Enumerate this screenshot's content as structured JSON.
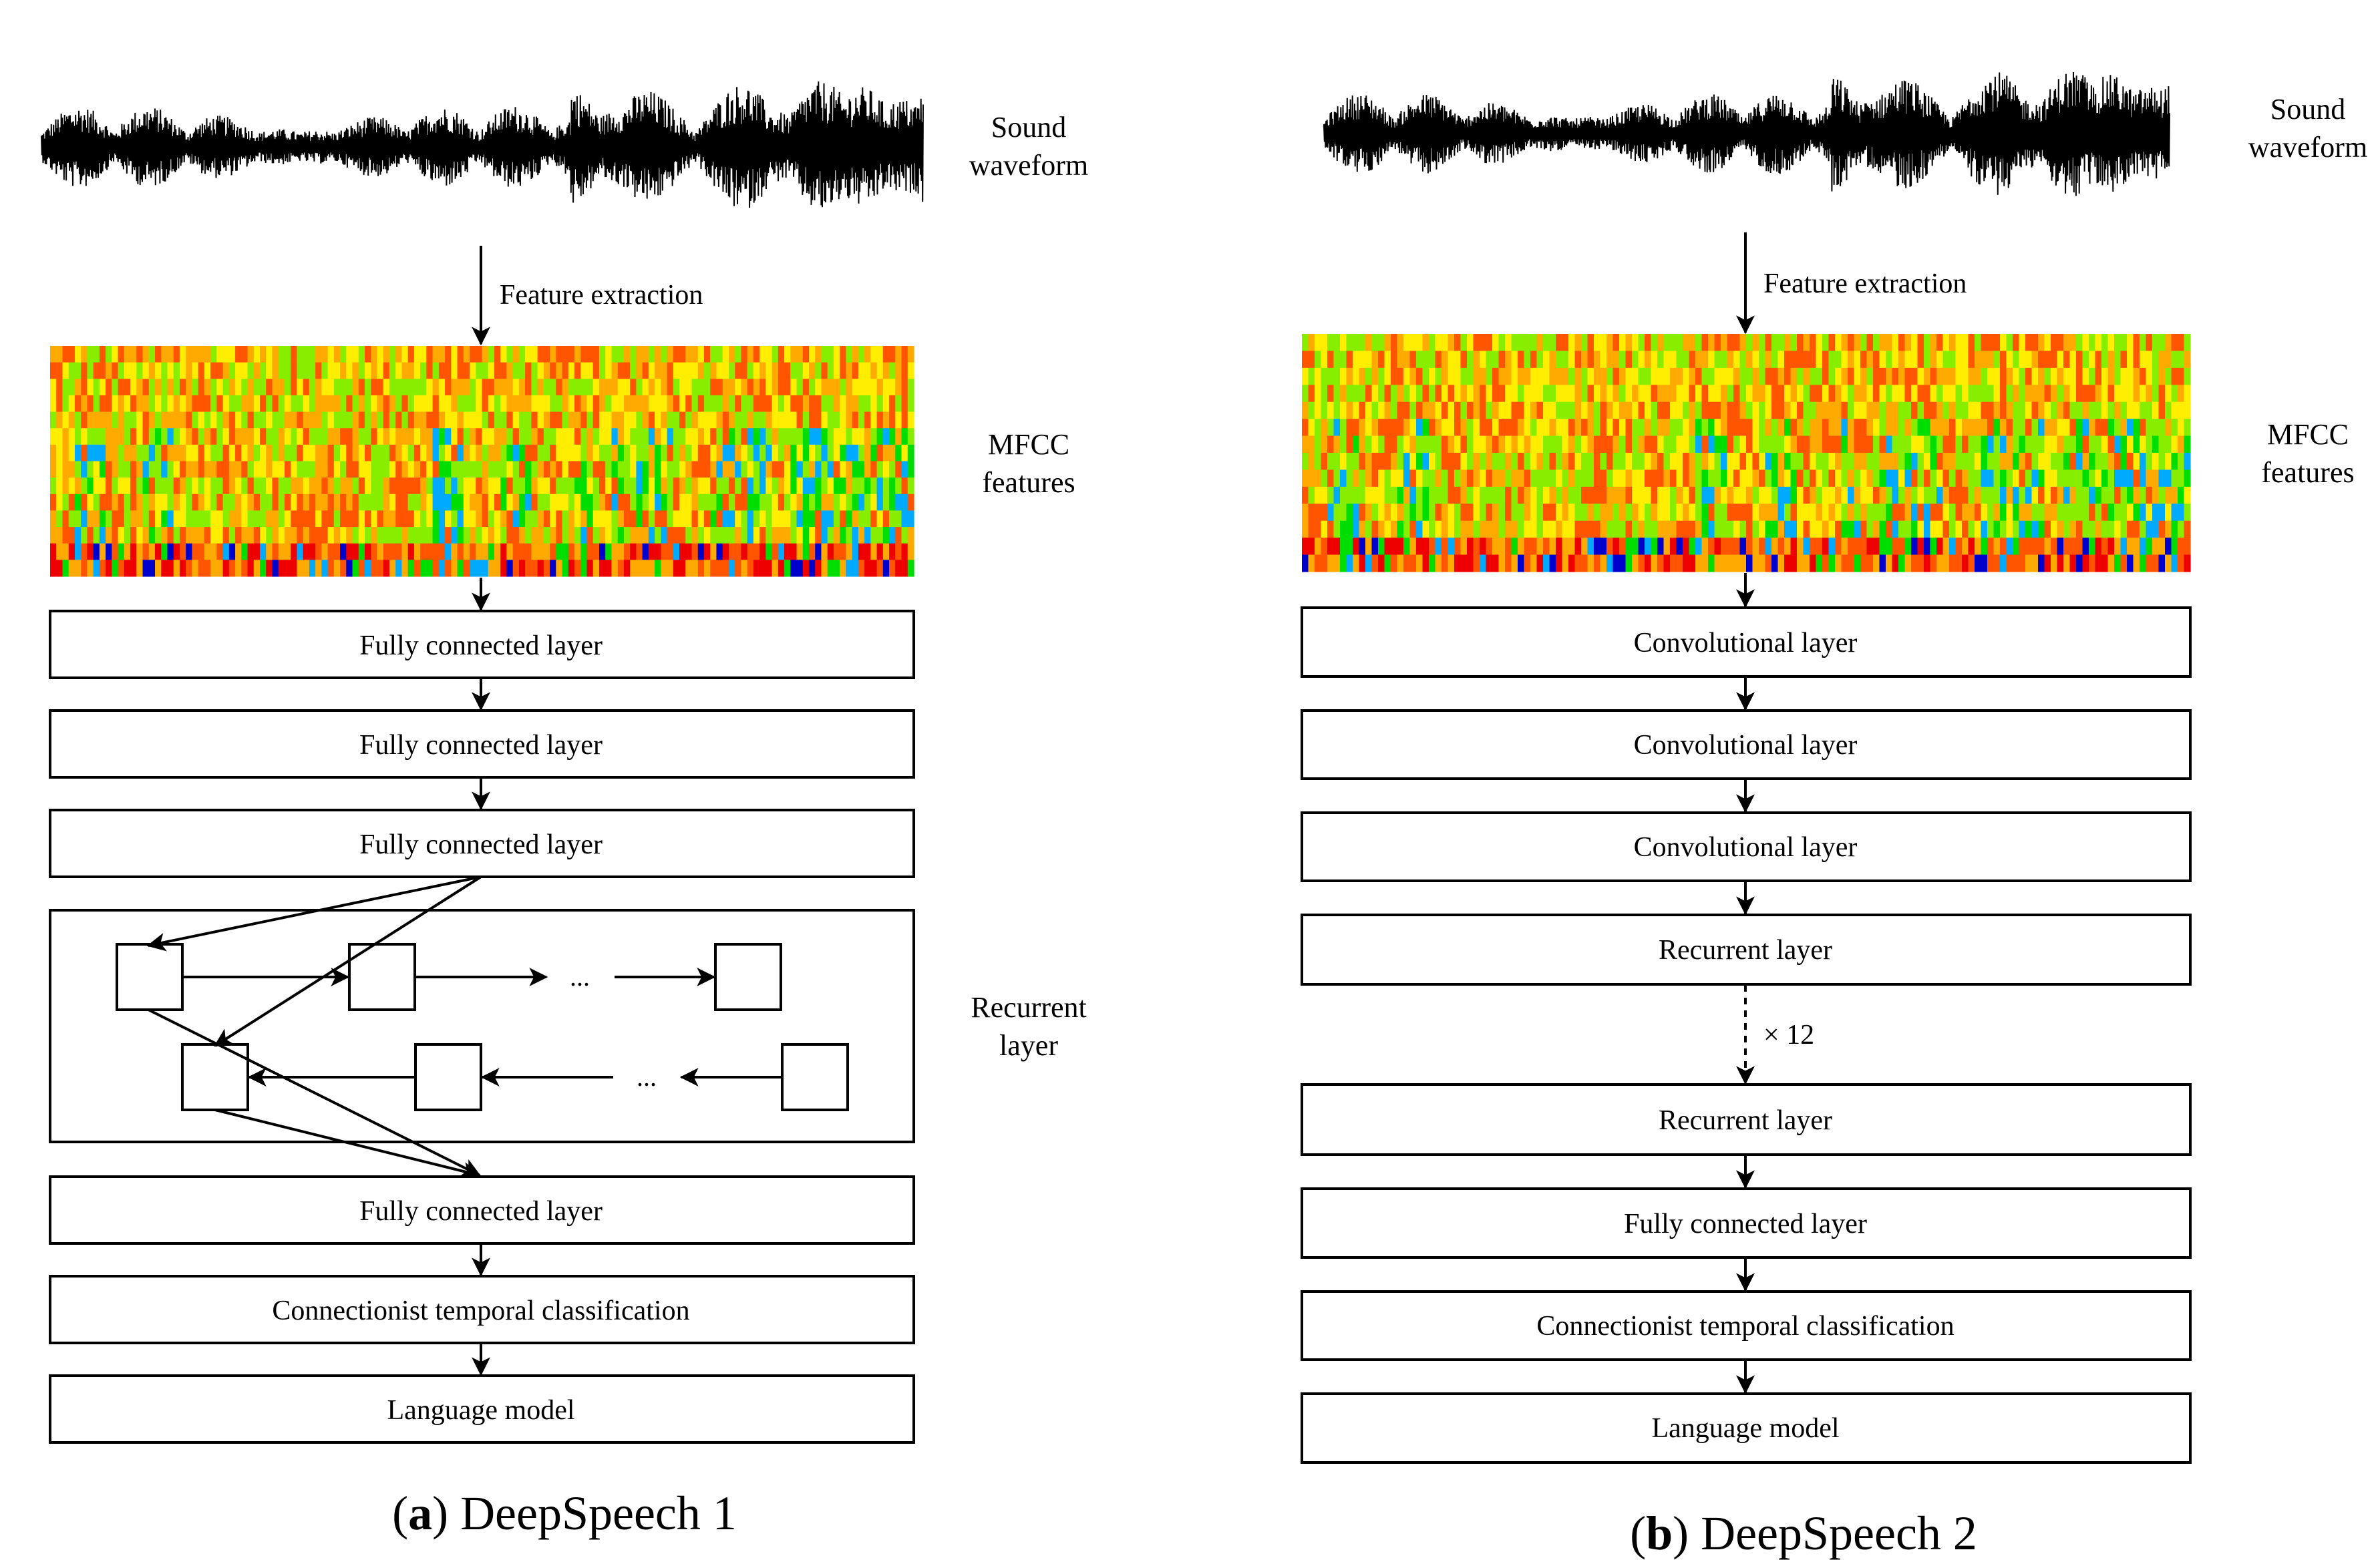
{
  "panel_a": {
    "caption_letter": "a",
    "caption_text": "DeepSpeech 1",
    "side_labels": {
      "sound_line1": "Sound",
      "sound_line2": "waveform",
      "mfcc_line1": "MFCC",
      "mfcc_line2": "features",
      "recurrent_line1": "Recurrent",
      "recurrent_line2": "layer"
    },
    "feature_extraction": "Feature extraction",
    "layers": [
      "Fully connected layer",
      "Fully connected layer",
      "Fully connected layer",
      "Fully connected layer",
      "Connectionist temporal classification",
      "Language model"
    ],
    "ellipsis": "..."
  },
  "panel_b": {
    "caption_letter": "b",
    "caption_text": "DeepSpeech 2",
    "side_labels": {
      "sound_line1": "Sound",
      "sound_line2": "waveform",
      "mfcc_line1": "MFCC",
      "mfcc_line2": "features"
    },
    "feature_extraction": "Feature extraction",
    "layers": [
      "Convolutional layer",
      "Convolutional layer",
      "Convolutional layer",
      "Recurrent layer",
      "Recurrent layer",
      "Fully connected layer",
      "Connectionist temporal classification",
      "Language model"
    ],
    "repeat_label": "× 12"
  },
  "colors": {
    "line": "#000000",
    "mfcc_palette": [
      "#0000cc",
      "#00aaff",
      "#00dd00",
      "#88ee00",
      "#ffee00",
      "#ffaa00",
      "#ff5500",
      "#ee0000"
    ]
  }
}
